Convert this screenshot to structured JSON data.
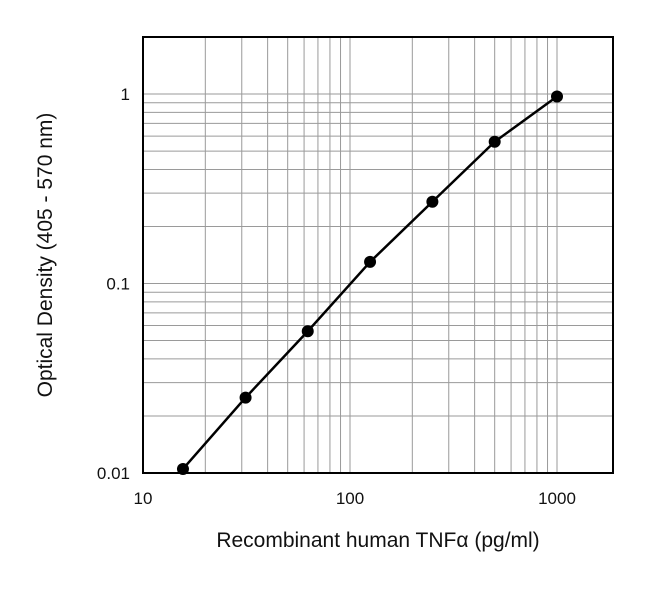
{
  "chart_data": {
    "type": "line",
    "xlabel": "Recombinant human TNFα (pg/ml)",
    "ylabel": "Optical Density (405 - 570 nm)",
    "xscale": "log",
    "yscale": "log",
    "xlim": [
      10,
      2000
    ],
    "ylim": [
      0.01,
      2
    ],
    "grid": true,
    "x_ticks": [
      {
        "value": 10,
        "label": "10"
      },
      {
        "value": 100,
        "label": "100"
      },
      {
        "value": 1000,
        "label": "1000"
      }
    ],
    "y_ticks": [
      {
        "value": 0.01,
        "label": "0.01"
      },
      {
        "value": 0.1,
        "label": "0.1"
      },
      {
        "value": 1,
        "label": "1"
      }
    ],
    "series": [
      {
        "x": [
          15.6,
          31.3,
          62.5,
          125,
          250,
          500,
          1000
        ],
        "y": [
          0.0105,
          0.025,
          0.056,
          0.13,
          0.27,
          0.56,
          0.97
        ]
      }
    ],
    "colors": {
      "line": "#000000",
      "grid": "#9a9a9a",
      "frame": "#000000"
    }
  }
}
